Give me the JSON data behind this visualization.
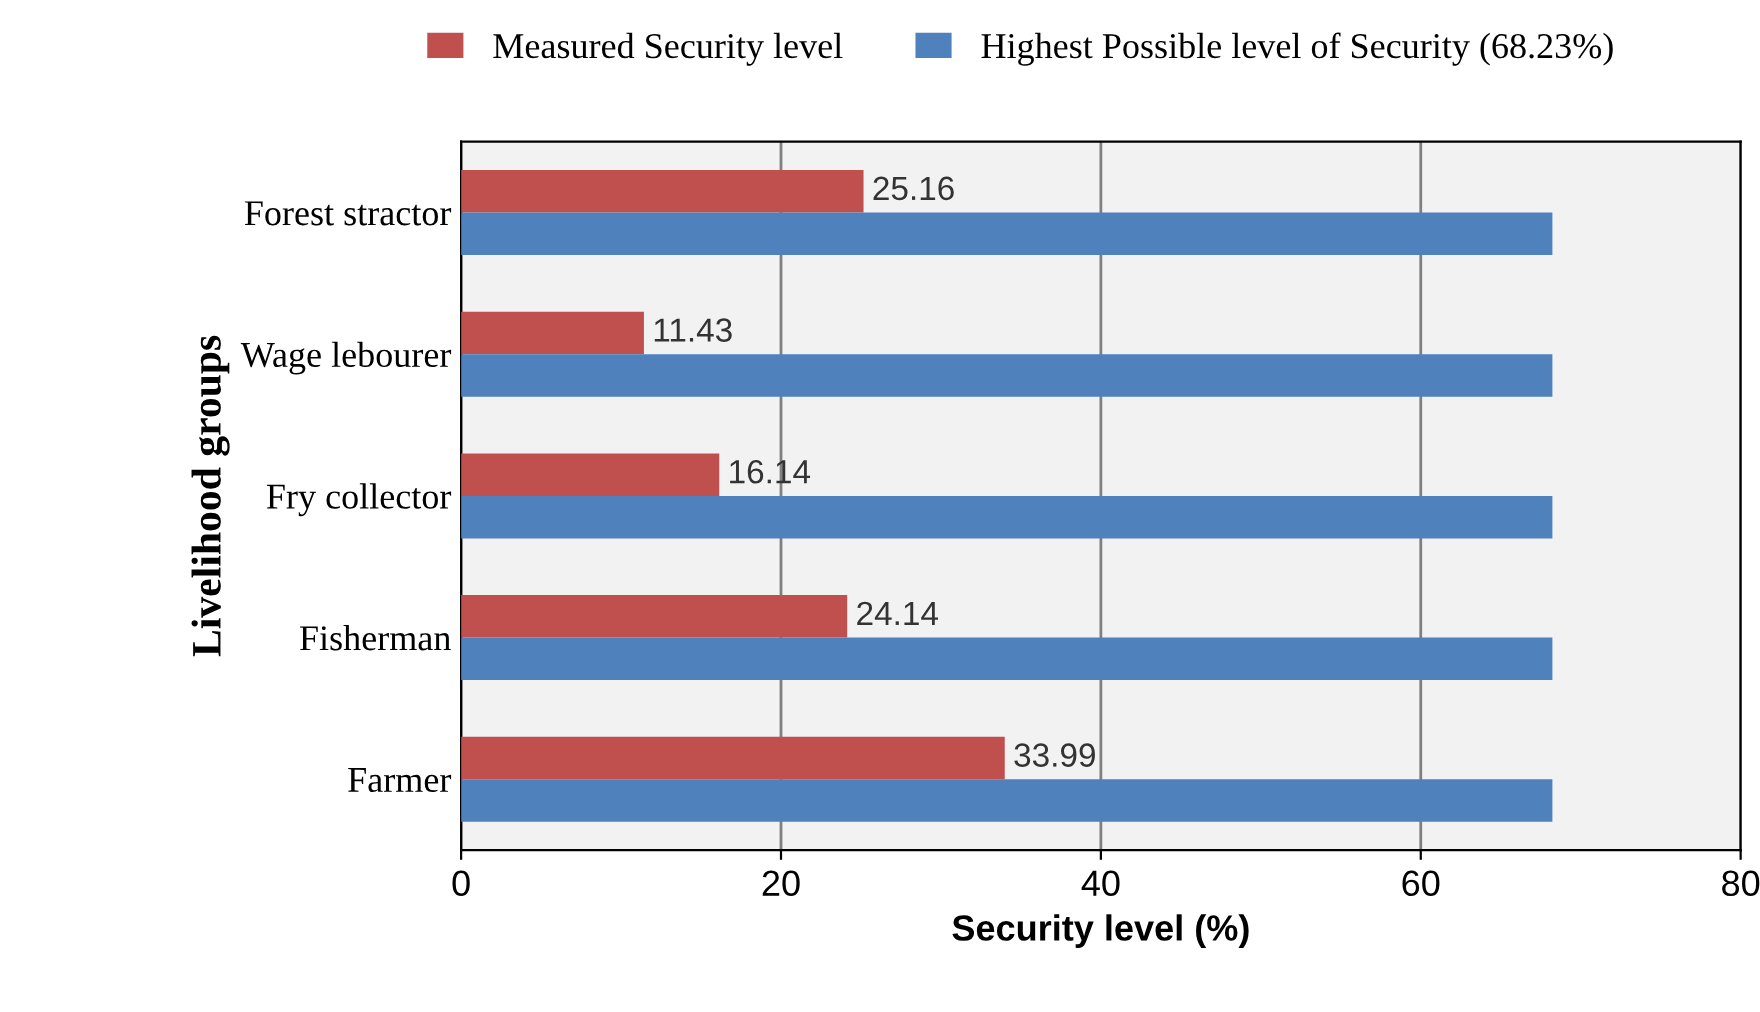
{
  "chart_data": {
    "type": "bar",
    "orientation": "horizontal",
    "xlabel": "Security level (%)",
    "ylabel": "Livelihood groups",
    "categories": [
      "Forest stractor",
      "Wage lebourer",
      "Fry collector",
      "Fisherman",
      "Farmer"
    ],
    "series": [
      {
        "name": "Measured Security level",
        "color": "#c0504d",
        "values": [
          25.16,
          11.43,
          16.14,
          24.14,
          33.99
        ],
        "value_labels": [
          "25.16",
          "11.43",
          "16.14",
          "24.14",
          "33.99"
        ]
      },
      {
        "name": "Highest Possible level of Security (68.23%)",
        "color": "#4f81bd",
        "values": [
          68.23,
          68.23,
          68.23,
          68.23,
          68.23
        ]
      }
    ],
    "xlim": [
      0,
      80
    ],
    "xticks": [
      0,
      20,
      40,
      60,
      80
    ],
    "grid": "x",
    "legend": "top"
  }
}
